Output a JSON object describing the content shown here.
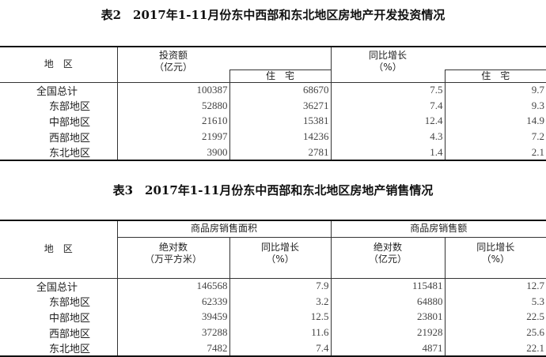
{
  "table2": {
    "title": "表2　2017年1-11月份东中西部和东北地区房地产开发投资情况",
    "headers": {
      "region": "地　区",
      "investment": "投资额",
      "investment_unit": "（亿元）",
      "residential": "住　宅",
      "growth": "同比增长",
      "growth_unit": "（%）",
      "growth_residential": "住　宅"
    },
    "rows": [
      {
        "region": "全国总计",
        "investment": "100387",
        "residential": "68670",
        "growth": "7.5",
        "growth_residential": "9.7"
      },
      {
        "region": "东部地区",
        "investment": "52880",
        "residential": "36271",
        "growth": "7.4",
        "growth_residential": "9.3"
      },
      {
        "region": "中部地区",
        "investment": "21610",
        "residential": "15381",
        "growth": "12.4",
        "growth_residential": "14.9"
      },
      {
        "region": "西部地区",
        "investment": "21997",
        "residential": "14236",
        "growth": "4.3",
        "growth_residential": "7.2"
      },
      {
        "region": "东北地区",
        "investment": "3900",
        "residential": "2781",
        "growth": "1.4",
        "growth_residential": "2.1"
      }
    ]
  },
  "table3": {
    "title": "表3　2017年1-11月份东中西部和东北地区房地产销售情况",
    "headers": {
      "region": "地　区",
      "area_group": "商品房销售面积",
      "sales_group": "商品房销售额",
      "absolute": "绝对数",
      "area_unit": "（万平方米）",
      "growth": "同比增长",
      "growth_unit": "（%）",
      "absolute2": "绝对数",
      "sales_unit": "（亿元）",
      "growth2": "同比增长",
      "growth_unit2": "（%）"
    },
    "rows": [
      {
        "region": "全国总计",
        "area": "146568",
        "area_growth": "7.9",
        "sales": "115481",
        "sales_growth": "12.7"
      },
      {
        "region": "东部地区",
        "area": "62339",
        "area_growth": "3.2",
        "sales": "64880",
        "sales_growth": "5.3"
      },
      {
        "region": "中部地区",
        "area": "39459",
        "area_growth": "12.5",
        "sales": "23801",
        "sales_growth": "22.5"
      },
      {
        "region": "西部地区",
        "area": "37288",
        "area_growth": "11.6",
        "sales": "21928",
        "sales_growth": "25.6"
      },
      {
        "region": "东北地区",
        "area": "7482",
        "area_growth": "7.4",
        "sales": "4871",
        "sales_growth": "22.1"
      }
    ]
  }
}
